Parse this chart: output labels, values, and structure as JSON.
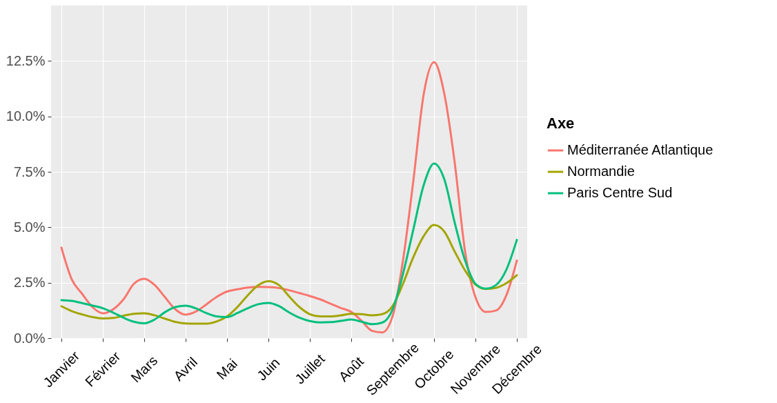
{
  "chart_data": {
    "type": "line",
    "legend_title": "Axe",
    "categories": [
      "Janvier",
      null,
      null,
      null,
      "Février",
      null,
      null,
      null,
      "Mars",
      null,
      null,
      null,
      "Avril",
      null,
      null,
      null,
      "Mai",
      null,
      null,
      null,
      "Juin",
      null,
      null,
      null,
      "Juillet",
      null,
      null,
      null,
      "Août",
      null,
      null,
      null,
      "Septembre",
      null,
      null,
      null,
      "Octobre",
      null,
      null,
      null,
      "Novembre",
      null,
      null,
      null,
      "Décembre"
    ],
    "ylim": [
      0,
      15
    ],
    "yticks": [
      {
        "value": 0,
        "label": "0.0%"
      },
      {
        "value": 2.5,
        "label": "2.5%"
      },
      {
        "value": 5,
        "label": "5.0%"
      },
      {
        "value": 7.5,
        "label": "7.5%"
      },
      {
        "value": 10,
        "label": "10.0%"
      },
      {
        "value": 12.5,
        "label": "12.5%"
      }
    ],
    "grid": true,
    "legend": "right",
    "series": [
      {
        "name": "Méditerranée Atlantique",
        "color": "#f8766d",
        "values": [
          4.08,
          2.65,
          2.0,
          1.4,
          1.12,
          1.3,
          1.75,
          2.45,
          2.68,
          2.4,
          1.85,
          1.3,
          1.06,
          1.2,
          1.52,
          1.86,
          2.1,
          2.2,
          2.28,
          2.31,
          2.3,
          2.26,
          2.16,
          2.03,
          1.9,
          1.75,
          1.55,
          1.36,
          1.18,
          0.78,
          0.33,
          0.26,
          1.0,
          3.5,
          7.1,
          11.0,
          12.45,
          11.0,
          7.9,
          3.9,
          1.85,
          1.18,
          1.25,
          1.95,
          3.5
        ]
      },
      {
        "name": "Normandie",
        "color": "#a3a500",
        "values": [
          1.44,
          1.22,
          1.07,
          0.95,
          0.89,
          0.91,
          1.01,
          1.1,
          1.12,
          1.03,
          0.88,
          0.73,
          0.66,
          0.65,
          0.65,
          0.75,
          0.98,
          1.4,
          1.93,
          2.38,
          2.57,
          2.4,
          1.88,
          1.4,
          1.08,
          0.98,
          0.98,
          1.03,
          1.1,
          1.08,
          1.03,
          1.08,
          1.45,
          2.45,
          3.65,
          4.6,
          5.1,
          4.8,
          3.9,
          3.05,
          2.42,
          2.22,
          2.27,
          2.48,
          2.84
        ]
      },
      {
        "name": "Paris Centre Sud",
        "color": "#00bf7d",
        "values": [
          1.71,
          1.68,
          1.58,
          1.47,
          1.35,
          1.15,
          0.92,
          0.74,
          0.67,
          0.84,
          1.17,
          1.4,
          1.46,
          1.34,
          1.13,
          0.98,
          0.95,
          1.13,
          1.35,
          1.53,
          1.59,
          1.45,
          1.16,
          0.92,
          0.77,
          0.71,
          0.72,
          0.78,
          0.84,
          0.74,
          0.63,
          0.7,
          1.3,
          2.9,
          4.9,
          6.9,
          7.87,
          7.15,
          5.2,
          3.5,
          2.45,
          2.23,
          2.4,
          3.1,
          4.43
        ]
      }
    ]
  }
}
